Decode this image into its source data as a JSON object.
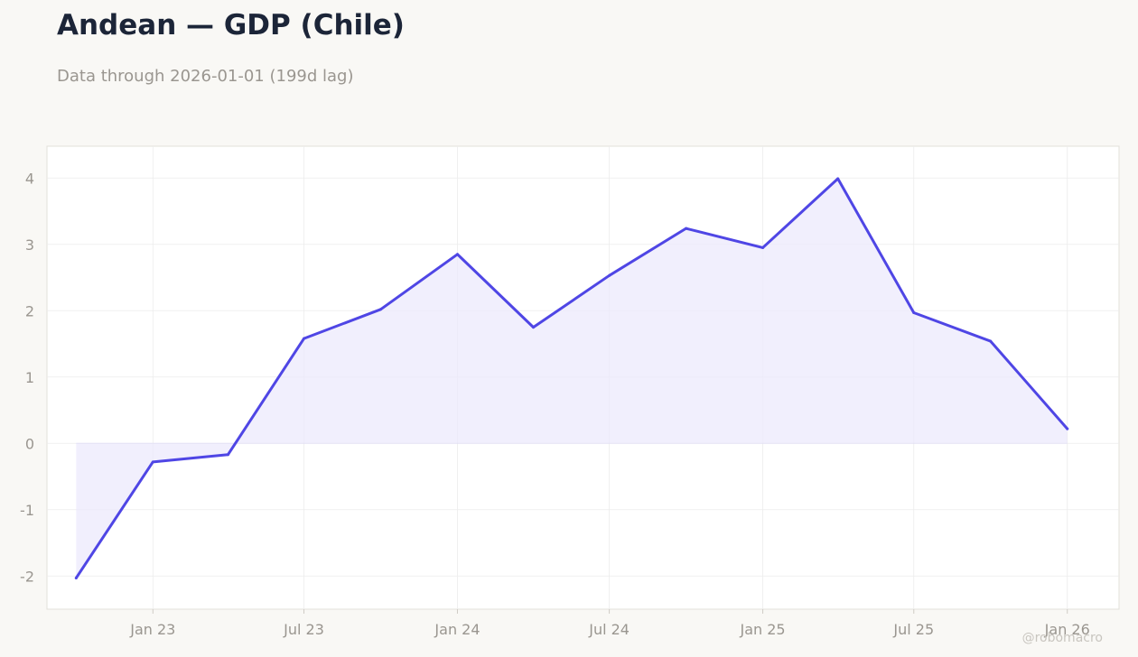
{
  "header": {
    "title": "Andean — GDP (Chile)",
    "subtitle": "Data through 2026-01-01 (199d lag)"
  },
  "watermark": "@robomacro",
  "colors": {
    "line": "#4f46e5",
    "fill": "#ece9fc",
    "grid": "#ececec",
    "axis_text": "#9a9690",
    "title": "#1c2538"
  },
  "chart_data": {
    "type": "area",
    "title": "Andean — GDP (Chile)",
    "subtitle": "Data through 2026-01-01 (199d lag)",
    "xlabel": "",
    "ylabel": "",
    "x": [
      "2022-10-01",
      "2023-01-01",
      "2023-04-01",
      "2023-07-01",
      "2023-10-01",
      "2024-01-01",
      "2024-04-01",
      "2024-07-01",
      "2024-10-01",
      "2025-01-01",
      "2025-04-01",
      "2025-07-01",
      "2025-10-01",
      "2026-01-01"
    ],
    "series": [
      {
        "values": [
          -2.03,
          -0.28,
          -0.17,
          1.58,
          2.02,
          2.85,
          1.75,
          2.53,
          3.24,
          2.95,
          3.99,
          1.97,
          1.54,
          0.22
        ]
      }
    ],
    "x_ticks": [
      {
        "date": "2023-01-01",
        "label": "Jan 23"
      },
      {
        "date": "2023-07-01",
        "label": "Jul 23"
      },
      {
        "date": "2024-01-01",
        "label": "Jan 24"
      },
      {
        "date": "2024-07-01",
        "label": "Jul 24"
      },
      {
        "date": "2025-01-01",
        "label": "Jan 25"
      },
      {
        "date": "2025-07-01",
        "label": "Jul 25"
      },
      {
        "date": "2026-01-01",
        "label": "Jan 26"
      }
    ],
    "y_ticks": [
      {
        "value": 4,
        "label": "4"
      },
      {
        "value": 3,
        "label": "3"
      },
      {
        "value": 2,
        "label": "2"
      },
      {
        "value": 1,
        "label": "1"
      },
      {
        "value": 0,
        "label": "0"
      },
      {
        "value": -1,
        "label": "-1"
      },
      {
        "value": -2,
        "label": "-2"
      }
    ],
    "xlim": [
      "2022-08-27",
      "2026-03-04"
    ],
    "ylim": [
      -2.5,
      4.48
    ],
    "grid": true,
    "legend": "none"
  }
}
